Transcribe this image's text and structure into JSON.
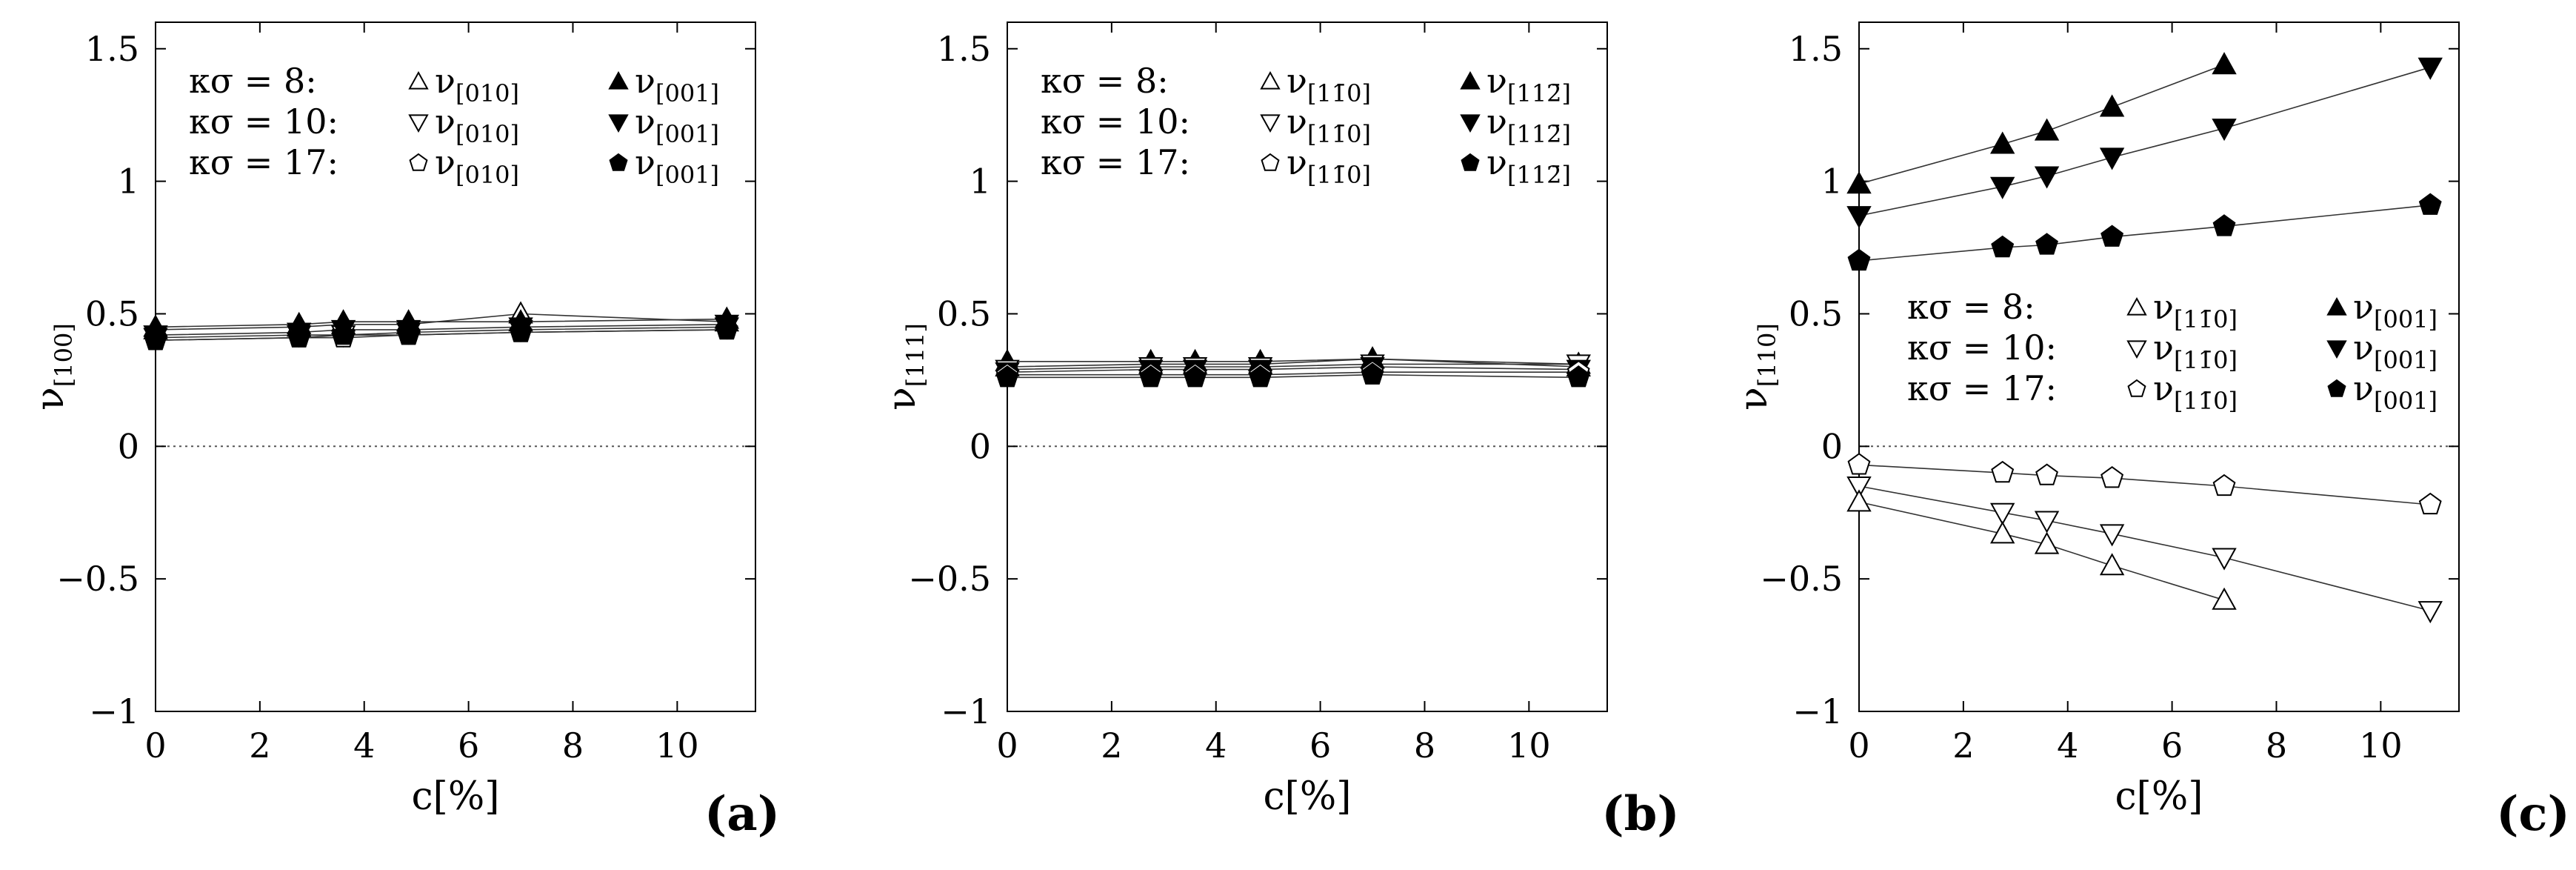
{
  "chart_data": [
    {
      "type": "scatter",
      "panel": "(a)",
      "xlabel": "c[%]",
      "ylabel_base": "ν",
      "ylabel_sub": "[100]",
      "xlim": [
        0,
        11.5
      ],
      "ylim": [
        -1,
        1.6
      ],
      "xticks": [
        0,
        2,
        4,
        6,
        8,
        10
      ],
      "yticks": [
        -1,
        -0.5,
        0,
        0.5,
        1,
        1.5
      ],
      "ytick_labels": [
        "−1",
        "−0.5",
        "0",
        "0.5",
        "1",
        "1.5"
      ],
      "legend_position": "top-left",
      "legend_rows": [
        {
          "label": "κσ =  8:",
          "open_sub": "[010]",
          "filled_sub": "[001]"
        },
        {
          "label": "κσ = 10:",
          "open_sub": "[010]",
          "filled_sub": "[001]"
        },
        {
          "label": "κσ = 17:",
          "open_sub": "[010]",
          "filled_sub": "[001]"
        }
      ],
      "series": [
        {
          "name": "κσ=8 ν[010]",
          "marker": "triangle-up",
          "filled": false,
          "x": [
            0,
            2.75,
            3.6,
            4.85,
            7.0,
            10.95
          ],
          "y": [
            0.44,
            0.45,
            0.46,
            0.46,
            0.5,
            0.47
          ]
        },
        {
          "name": "κσ=8 ν[001]",
          "marker": "triangle-up",
          "filled": true,
          "x": [
            0,
            2.75,
            3.6,
            4.85,
            7.0,
            10.95
          ],
          "y": [
            0.45,
            0.46,
            0.47,
            0.47,
            0.47,
            0.48
          ]
        },
        {
          "name": "κσ=10 ν[010]",
          "marker": "triangle-down",
          "filled": false,
          "x": [
            0,
            2.75,
            3.6,
            4.85,
            7.0,
            10.95
          ],
          "y": [
            0.41,
            0.42,
            0.42,
            0.43,
            0.44,
            0.45
          ]
        },
        {
          "name": "κσ=10 ν[001]",
          "marker": "triangle-down",
          "filled": true,
          "x": [
            0,
            2.75,
            3.6,
            4.85,
            7.0,
            10.95
          ],
          "y": [
            0.42,
            0.43,
            0.44,
            0.44,
            0.45,
            0.46
          ]
        },
        {
          "name": "κσ=17 ν[010]",
          "marker": "pentagon",
          "filled": false,
          "x": [
            0,
            2.75,
            3.6,
            4.85,
            7.0,
            10.95
          ],
          "y": [
            0.4,
            0.41,
            0.41,
            0.42,
            0.43,
            0.44
          ]
        },
        {
          "name": "κσ=17 ν[001]",
          "marker": "pentagon",
          "filled": true,
          "x": [
            0,
            2.75,
            3.6,
            4.85,
            7.0,
            10.95
          ],
          "y": [
            0.4,
            0.41,
            0.42,
            0.42,
            0.43,
            0.44
          ]
        }
      ]
    },
    {
      "type": "scatter",
      "panel": "(b)",
      "xlabel": "c[%]",
      "ylabel_base": "ν",
      "ylabel_sub": "[111]",
      "xlim": [
        0,
        11.5
      ],
      "ylim": [
        -1,
        1.6
      ],
      "xticks": [
        0,
        2,
        4,
        6,
        8,
        10
      ],
      "yticks": [
        -1,
        -0.5,
        0,
        0.5,
        1,
        1.5
      ],
      "ytick_labels": [
        "−1",
        "−0.5",
        "0",
        "0.5",
        "1",
        "1.5"
      ],
      "legend_position": "top-left",
      "legend_rows": [
        {
          "label": "κσ =  8:",
          "open_sub": "[11̄0]",
          "filled_sub": "[112̄]"
        },
        {
          "label": "κσ = 10:",
          "open_sub": "[11̄0]",
          "filled_sub": "[112̄]"
        },
        {
          "label": "κσ = 17:",
          "open_sub": "[11̄0]",
          "filled_sub": "[112̄]"
        }
      ],
      "series": [
        {
          "name": "κσ=8 ν[11̄0]",
          "marker": "triangle-up",
          "filled": false,
          "x": [
            0,
            2.75,
            3.6,
            4.85,
            7.0,
            10.95
          ],
          "y": [
            0.3,
            0.31,
            0.31,
            0.31,
            0.33,
            0.31
          ]
        },
        {
          "name": "κσ=8 ν[112̄]",
          "marker": "triangle-up",
          "filled": true,
          "x": [
            0,
            2.75,
            3.6,
            4.85,
            7.0,
            10.95
          ],
          "y": [
            0.32,
            0.32,
            0.32,
            0.32,
            0.33,
            0.3
          ]
        },
        {
          "name": "κσ=10 ν[11̄0]",
          "marker": "triangle-down",
          "filled": false,
          "x": [
            0,
            2.75,
            3.6,
            4.85,
            7.0,
            10.95
          ],
          "y": [
            0.29,
            0.3,
            0.3,
            0.3,
            0.31,
            0.31
          ]
        },
        {
          "name": "κσ=10 ν[112̄]",
          "marker": "triangle-down",
          "filled": true,
          "x": [
            0,
            2.75,
            3.6,
            4.85,
            7.0,
            10.95
          ],
          "y": [
            0.28,
            0.29,
            0.29,
            0.29,
            0.3,
            0.29
          ]
        },
        {
          "name": "κσ=17 ν[11̄0]",
          "marker": "pentagon",
          "filled": false,
          "x": [
            0,
            2.75,
            3.6,
            4.85,
            7.0,
            10.95
          ],
          "y": [
            0.27,
            0.27,
            0.27,
            0.27,
            0.28,
            0.28
          ]
        },
        {
          "name": "κσ=17 ν[112̄]",
          "marker": "pentagon",
          "filled": true,
          "x": [
            0,
            2.75,
            3.6,
            4.85,
            7.0,
            10.95
          ],
          "y": [
            0.26,
            0.26,
            0.26,
            0.26,
            0.27,
            0.26
          ]
        }
      ]
    },
    {
      "type": "scatter",
      "panel": "(c)",
      "xlabel": "c[%]",
      "ylabel_base": "ν",
      "ylabel_sub": "[110]",
      "xlim": [
        0,
        11.5
      ],
      "ylim": [
        -1,
        1.6
      ],
      "xticks": [
        0,
        2,
        4,
        6,
        8,
        10
      ],
      "yticks": [
        -1,
        -0.5,
        0,
        0.5,
        1,
        1.5
      ],
      "ytick_labels": [
        "−1",
        "−0.5",
        "0",
        "0.5",
        "1",
        "1.5"
      ],
      "legend_position": "center-left",
      "legend_rows": [
        {
          "label": "κσ =  8:",
          "open_sub": "[11̄0]",
          "filled_sub": "[001]"
        },
        {
          "label": "κσ = 10:",
          "open_sub": "[11̄0]",
          "filled_sub": "[001]"
        },
        {
          "label": "κσ = 17:",
          "open_sub": "[11̄0]",
          "filled_sub": "[001]"
        }
      ],
      "series": [
        {
          "name": "κσ=8 ν[001]",
          "marker": "triangle-up",
          "filled": true,
          "x": [
            0,
            2.75,
            3.6,
            4.85,
            7.0
          ],
          "y": [
            0.99,
            1.14,
            1.19,
            1.28,
            1.44
          ]
        },
        {
          "name": "κσ=10 ν[001]",
          "marker": "triangle-down",
          "filled": true,
          "x": [
            0,
            2.75,
            3.6,
            4.85,
            7.0,
            10.95
          ],
          "y": [
            0.87,
            0.98,
            1.02,
            1.09,
            1.2,
            1.43
          ]
        },
        {
          "name": "κσ=17 ν[001]",
          "marker": "pentagon",
          "filled": true,
          "x": [
            0,
            2.75,
            3.6,
            4.85,
            7.0,
            10.95
          ],
          "y": [
            0.7,
            0.75,
            0.76,
            0.79,
            0.83,
            0.91
          ]
        },
        {
          "name": "κσ=17 ν[11̄0]",
          "marker": "pentagon",
          "filled": false,
          "x": [
            0,
            2.75,
            3.6,
            4.85,
            7.0,
            10.95
          ],
          "y": [
            -0.07,
            -0.1,
            -0.11,
            -0.12,
            -0.15,
            -0.22
          ]
        },
        {
          "name": "κσ=10 ν[11̄0]",
          "marker": "triangle-down",
          "filled": false,
          "x": [
            0,
            2.75,
            3.6,
            4.85,
            7.0,
            10.95
          ],
          "y": [
            -0.15,
            -0.25,
            -0.28,
            -0.33,
            -0.42,
            -0.62
          ]
        },
        {
          "name": "κσ=8 ν[11̄0]",
          "marker": "triangle-up",
          "filled": false,
          "x": [
            0,
            2.75,
            3.6,
            4.85,
            7.0
          ],
          "y": [
            -0.21,
            -0.33,
            -0.37,
            -0.45,
            -0.58
          ]
        }
      ]
    }
  ]
}
